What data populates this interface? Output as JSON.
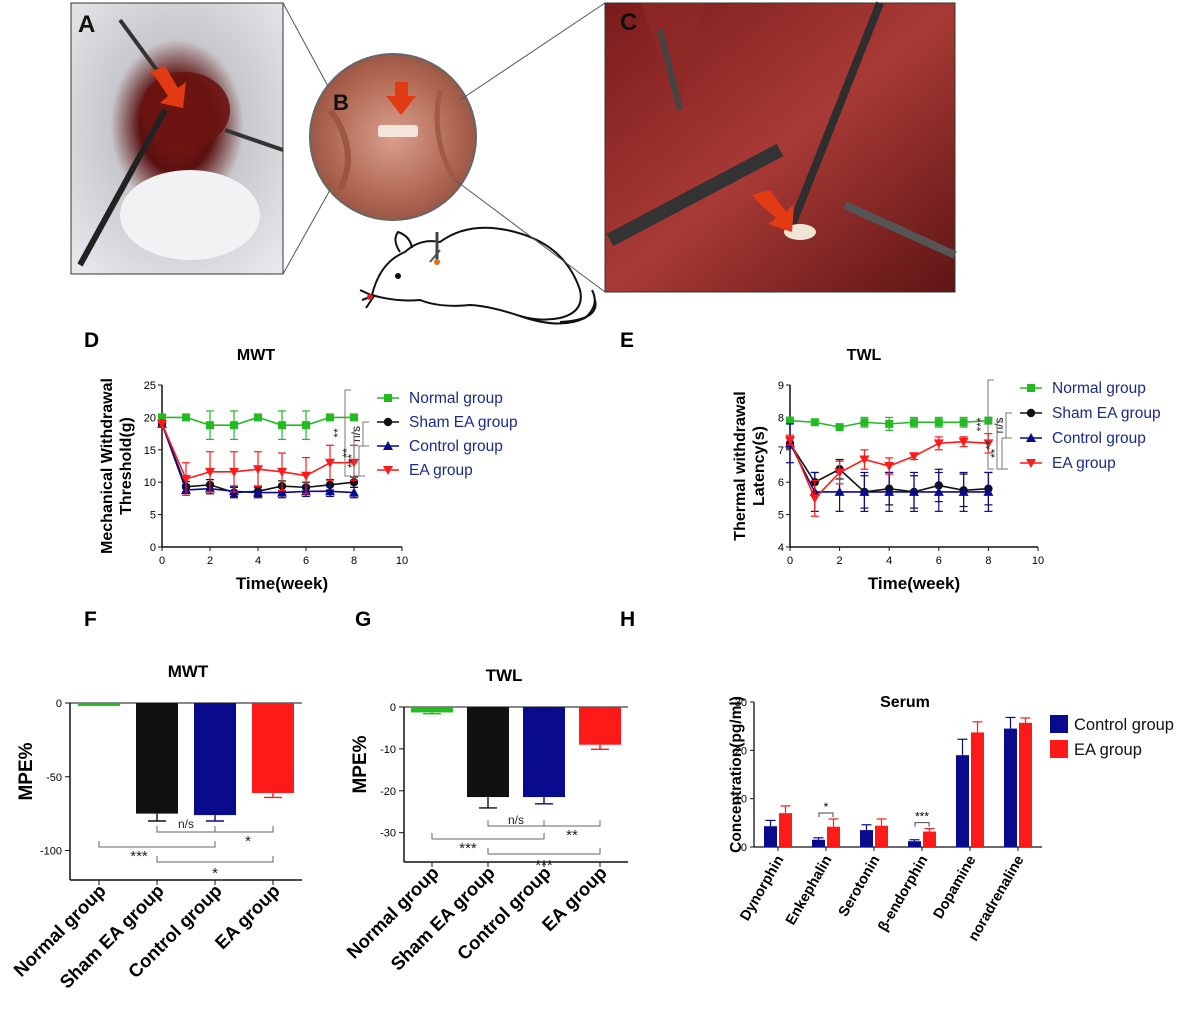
{
  "colors": {
    "green": "#22bb22",
    "black": "#111111",
    "navy": "#0a0a8c",
    "red": "#ff1a1a",
    "legend_text": "#1a2a8c",
    "navy_bar": "#0a0a8c"
  },
  "panels": {
    "A": {
      "label": "A"
    },
    "B": {
      "label": "B"
    },
    "C": {
      "label": "C"
    }
  },
  "chart_data": [
    {
      "panel": "D",
      "id": "mwt-line",
      "type": "line",
      "title": "MWT",
      "xlabel": "Time(week)",
      "ylabel": "Mechanical Withdrawal Threshold(g)",
      "xlim": [
        0,
        10
      ],
      "ylim": [
        0,
        25
      ],
      "xticks": [
        "0",
        "2",
        "4",
        "6",
        "8",
        "10"
      ],
      "yticks": [
        "0",
        "5",
        "10",
        "15",
        "20",
        "25"
      ],
      "x": [
        0,
        1,
        2,
        3,
        4,
        5,
        6,
        7,
        8
      ],
      "series": [
        {
          "name": "Normal group",
          "color": "#22bb22",
          "marker": "square",
          "values": [
            20,
            20,
            18.8,
            18.8,
            20,
            18.8,
            18.8,
            20,
            20
          ],
          "err": [
            0.3,
            0.3,
            2.2,
            2.2,
            0.3,
            2.2,
            2.2,
            0.3,
            0.3
          ]
        },
        {
          "name": "Sham EA group",
          "color": "#111111",
          "marker": "circle",
          "values": [
            19,
            9.3,
            9.6,
            8.4,
            8.6,
            9.4,
            9.2,
            9.6,
            10
          ],
          "err": [
            0.5,
            0.8,
            0.8,
            0.8,
            0.8,
            0.8,
            0.8,
            0.8,
            0.8
          ]
        },
        {
          "name": "Control group",
          "color": "#0a0a8c",
          "marker": "triangle-up",
          "values": [
            19,
            8.8,
            9,
            8.6,
            8.4,
            8.4,
            8.6,
            8.6,
            8.4
          ],
          "err": [
            0.5,
            0.8,
            0.8,
            0.8,
            0.8,
            0.8,
            0.8,
            0.8,
            0.8
          ]
        },
        {
          "name": "EA group",
          "color": "#ff1a1a",
          "marker": "triangle-down",
          "values": [
            19,
            10.5,
            11.6,
            11.6,
            12,
            11.6,
            11,
            13,
            13
          ],
          "err": [
            0.5,
            2.5,
            3.1,
            3.1,
            2.7,
            2.9,
            2.8,
            2.7,
            2.7
          ]
        }
      ],
      "significance": [
        "**",
        "n/s",
        "**",
        "***"
      ]
    },
    {
      "panel": "E",
      "id": "twl-line",
      "type": "line",
      "title": "TWL",
      "xlabel": "Time(week)",
      "ylabel": "Thermal withdrawal Latency(s)",
      "xlim": [
        0,
        10
      ],
      "ylim": [
        4,
        9
      ],
      "xticks": [
        "0",
        "2",
        "4",
        "6",
        "8",
        "10"
      ],
      "yticks": [
        "4",
        "5",
        "6",
        "7",
        "8",
        "9"
      ],
      "x": [
        0,
        1,
        2,
        3,
        4,
        5,
        6,
        7,
        8
      ],
      "series": [
        {
          "name": "Normal group",
          "color": "#22bb22",
          "marker": "square",
          "values": [
            7.9,
            7.85,
            7.7,
            7.85,
            7.8,
            7.85,
            7.85,
            7.85,
            7.9
          ],
          "err": [
            0.1,
            0.05,
            0.05,
            0.15,
            0.2,
            0.15,
            0.15,
            0.15,
            0.1
          ]
        },
        {
          "name": "Sham EA group",
          "color": "#111111",
          "marker": "circle",
          "values": [
            7.2,
            6,
            6.4,
            5.7,
            5.8,
            5.7,
            5.9,
            5.75,
            5.8
          ],
          "err": [
            0.15,
            0.3,
            0.3,
            0.5,
            0.5,
            0.5,
            0.5,
            0.5,
            0.5
          ]
        },
        {
          "name": "Control group",
          "color": "#0a0a8c",
          "marker": "triangle-up",
          "values": [
            7.2,
            5.7,
            5.7,
            5.7,
            5.7,
            5.7,
            5.7,
            5.7,
            5.7
          ],
          "err": [
            0.6,
            0.6,
            0.6,
            0.6,
            0.6,
            0.6,
            0.6,
            0.6,
            0.6
          ]
        },
        {
          "name": "EA group",
          "color": "#ff1a1a",
          "marker": "triangle-down",
          "values": [
            7.3,
            5.5,
            6.3,
            6.7,
            6.5,
            6.8,
            7.2,
            7.25,
            7.2
          ],
          "err": [
            0.15,
            0.55,
            0.35,
            0.3,
            0.25,
            0.1,
            0.2,
            0.15,
            0.3
          ]
        }
      ],
      "significance": [
        "***",
        "n/s",
        "**",
        "**"
      ]
    },
    {
      "panel": "F",
      "id": "mwt-bar",
      "type": "bar",
      "title": "MWT",
      "xlabel": "",
      "ylabel": "MPE%",
      "ylim": [
        -120,
        0
      ],
      "yticks": [
        "0",
        "-50",
        "-100"
      ],
      "categories": [
        "Normal group",
        "Sham EA group",
        "Control group",
        "EA group"
      ],
      "values": [
        -2,
        -75,
        -76,
        -61
      ],
      "err": [
        0,
        5,
        4,
        3
      ],
      "colors": [
        "#22bb22",
        "#111111",
        "#0a0a8c",
        "#ff1a1a"
      ],
      "brackets": [
        {
          "from": 1,
          "to": 2,
          "text": "n/s"
        },
        {
          "from": 2,
          "to": 3,
          "text": "*"
        },
        {
          "from": 0,
          "to": 2,
          "text": "***"
        },
        {
          "from": 1,
          "to": 3,
          "text": "*"
        }
      ]
    },
    {
      "panel": "G",
      "id": "twl-bar",
      "type": "bar",
      "title": "TWL",
      "xlabel": "",
      "ylabel": "MPE%",
      "ylim": [
        -37,
        0
      ],
      "yticks": [
        "0",
        "-10",
        "-20",
        "-30"
      ],
      "categories": [
        "Normal group",
        "Sham EA group",
        "Control group",
        "EA group"
      ],
      "values": [
        -1.3,
        -21.5,
        -21.5,
        -9
      ],
      "err": [
        0.3,
        2.6,
        1.6,
        1.1
      ],
      "colors": [
        "#22bb22",
        "#111111",
        "#0a0a8c",
        "#ff1a1a"
      ],
      "brackets": [
        {
          "from": 1,
          "to": 2,
          "text": "n/s"
        },
        {
          "from": 2,
          "to": 3,
          "text": "**"
        },
        {
          "from": 0,
          "to": 2,
          "text": "***"
        },
        {
          "from": 1,
          "to": 3,
          "text": "***"
        }
      ]
    },
    {
      "panel": "H",
      "id": "serum-bar",
      "type": "bar",
      "title": "Serum",
      "xlabel": "",
      "ylabel": "Concentration(pg/ml)",
      "ylim": [
        0,
        30
      ],
      "yticks": [
        "0",
        "10",
        "20",
        "30"
      ],
      "categories": [
        "Dynorphin",
        "Enkephalin",
        "Serotonin",
        "β-endorphin",
        "Dopamine",
        "noradrenaline"
      ],
      "series": [
        {
          "name": "Control group",
          "color": "#0a0a8c",
          "values": [
            4.3,
            1.5,
            3.5,
            1.2,
            19,
            24.5
          ],
          "err": [
            1.2,
            0.4,
            1.1,
            0.3,
            3.3,
            2.3
          ]
        },
        {
          "name": "EA group",
          "color": "#ff1a1a",
          "values": [
            7,
            4.2,
            4.4,
            3.2,
            23.7,
            25.7
          ],
          "err": [
            1.5,
            1.6,
            1.4,
            0.6,
            2.2,
            1.0
          ]
        }
      ],
      "significance": [
        {
          "category": 1,
          "text": "*"
        },
        {
          "category": 3,
          "text": "***"
        }
      ]
    }
  ]
}
